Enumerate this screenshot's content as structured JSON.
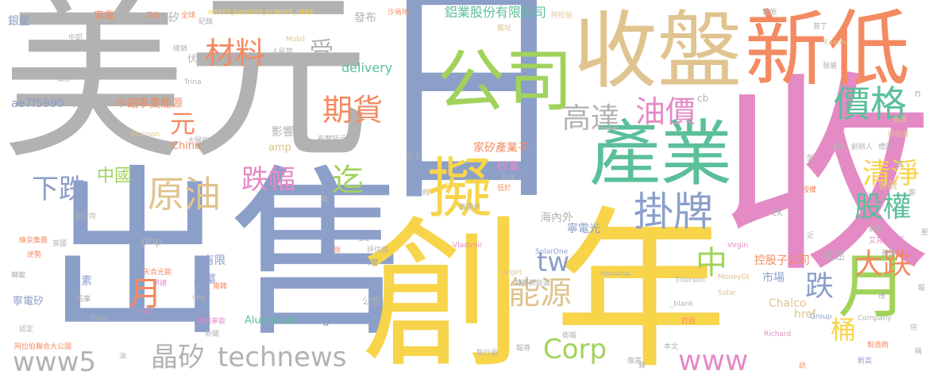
{
  "palette": {
    "blue": "#8b9fc9",
    "gray": "#b2b2b2",
    "yellow": "#f7d44a",
    "green": "#5bbf99",
    "tan": "#e0c48f",
    "orange": "#f48a61",
    "pink": "#e48ac5",
    "lime": "#a1d35b"
  },
  "words": [
    {
      "text": "日"
    },
    {
      "text": "收"
    },
    {
      "text": "美元"
    },
    {
      "text": "出售"
    },
    {
      "text": "創"
    },
    {
      "text": "年"
    },
    {
      "text": "收盤"
    },
    {
      "text": "新低"
    },
    {
      "text": "產業"
    },
    {
      "text": "公司"
    },
    {
      "text": "月"
    },
    {
      "text": "擬"
    },
    {
      "text": "掛牌"
    },
    {
      "text": "價格"
    },
    {
      "text": "原油"
    },
    {
      "text": "材料"
    },
    {
      "text": "期貨"
    },
    {
      "text": "油價"
    },
    {
      "text": "高達"
    },
    {
      "text": "清淨"
    },
    {
      "text": "股權"
    },
    {
      "text": "下跌"
    },
    {
      "text": "跌幅"
    },
    {
      "text": "迄"
    },
    {
      "text": "能源"
    },
    {
      "text": "Corp"
    },
    {
      "text": "www"
    },
    {
      "text": "大跌"
    },
    {
      "text": "跌"
    },
    {
      "text": "中"
    },
    {
      "text": "tw"
    },
    {
      "text": "桶"
    },
    {
      "text": "元"
    },
    {
      "text": "www5"
    },
    {
      "text": "晶矽"
    },
    {
      "text": "technews"
    },
    {
      "text": "月"
    },
    {
      "text": "中國"
    },
    {
      "text": "受"
    },
    {
      "text": "鋁業股份有限公司"
    },
    {
      "text": "delivery"
    },
    {
      "text": "發布"
    },
    {
      "text": "中鋁寧夏能源"
    },
    {
      "text": "ae7f5990"
    },
    {
      "text": "破產"
    },
    {
      "text": "影響"
    },
    {
      "text": "家矽產業子"
    },
    {
      "text": "矽業"
    },
    {
      "text": "控股子公司"
    },
    {
      "text": "市場"
    },
    {
      "text": "海內外"
    },
    {
      "text": "寧電光"
    },
    {
      "text": "低迷"
    },
    {
      "text": "Chalco"
    },
    {
      "text": "href"
    },
    {
      "text": "客觀"
    },
    {
      "text": "因素"
    },
    {
      "text": "所屬"
    },
    {
      "text": "有限"
    },
    {
      "text": "Aluminum"
    },
    {
      "text": "a"
    },
    {
      "text": "China"
    },
    {
      "text": "amp"
    },
    {
      "text": "php"
    },
    {
      "text": "寧電矽"
    },
    {
      "text": "銀星"
    },
    {
      "text": "寧電"
    },
    {
      "text": "伏"
    },
    {
      "text": "矽"
    },
    {
      "text": "cb"
    },
    {
      "text": "n"
    },
    {
      "text": "ck"
    },
    {
      "text": "公告"
    },
    {
      "text": "INSERT_RANDOM_NUMBER_HERE"
    },
    {
      "text": "沙烏地"
    },
    {
      "text": "阿拉伯"
    },
    {
      "text": "實施"
    },
    {
      "text": "普丁"
    },
    {
      "text": "Exxon"
    },
    {
      "text": "Mobil"
    },
    {
      "text": "人民幣"
    },
    {
      "text": "中鋁"
    },
    {
      "text": "轉銷"
    },
    {
      "text": "總銷"
    },
    {
      "text": "做好"
    },
    {
      "text": "Trina"
    },
    {
      "text": "Branson"
    },
    {
      "text": "太陽能"
    },
    {
      "text": "布蘭特近"
    },
    {
      "text": "日子"
    },
    {
      "text": "時"
    },
    {
      "text": "韓"
    },
    {
      "text": "低於"
    },
    {
      "text": "西德州"
    },
    {
      "text": "Rex"
    },
    {
      "text": "評估值"
    },
    {
      "text": "Vladimir"
    },
    {
      "text": "SolarOne"
    },
    {
      "text": "Hanwha"
    },
    {
      "text": "Tillerson"
    },
    {
      "text": "MoneyDJ"
    },
    {
      "text": "Solar"
    },
    {
      "text": "Virgin"
    },
    {
      "text": "艾克森美孚"
    },
    {
      "text": "美國"
    },
    {
      "text": "解散"
    },
    {
      "text": "Group"
    },
    {
      "text": "Richard"
    },
    {
      "text": "Company"
    },
    {
      "text": "製造商"
    },
    {
      "text": "新高"
    },
    {
      "text": "阿拉伯聯合大公國"
    },
    {
      "text": "執行長"
    },
    {
      "text": "報導"
    },
    {
      "text": "衛報"
    },
    {
      "text": "打包"
    },
    {
      "text": "韓華新能源"
    },
    {
      "text": "target"
    },
    {
      "text": "_blank"
    },
    {
      "text": "OCI"
    },
    {
      "text": "Putin"
    },
    {
      "text": "天合光能"
    },
    {
      "text": "中鋁寧能"
    },
    {
      "text": "新聞"
    },
    {
      "text": "本文"
    },
    {
      "text": "傷害"
    },
    {
      "text": "轉載"
    },
    {
      "text": "逆勢"
    },
    {
      "text": "英國"
    },
    {
      "text": "維京集團"
    },
    {
      "text": "高位"
    },
    {
      "text": "全球"
    },
    {
      "text": "舊址"
    },
    {
      "text": "紀錄"
    },
    {
      "text": "清算"
    },
    {
      "text": "創辦人"
    },
    {
      "text": "標的"
    },
    {
      "text": "評估者"
    },
    {
      "text": "負債"
    },
    {
      "text": "授權"
    },
    {
      "text": "發展"
    },
    {
      "text": "家公司"
    },
    {
      "text": "src"
    },
    {
      "text": "img"
    },
    {
      "text": "說"
    },
    {
      "text": "申請"
    },
    {
      "text": "低廉"
    },
    {
      "text": "南韓"
    },
    {
      "text": "時間"
    },
    {
      "text": "認定"
    },
    {
      "text": "油"
    },
    {
      "text": "盤"
    },
    {
      "text": "訪"
    },
    {
      "text": "倍"
    },
    {
      "text": "聲"
    },
    {
      "text": "稱"
    },
    {
      "text": "藩"
    },
    {
      "text": "近"
    },
    {
      "text": "撞"
    },
    {
      "text": "跟"
    },
    {
      "text": "報"
    },
    {
      "text": "壓"
    }
  ]
}
